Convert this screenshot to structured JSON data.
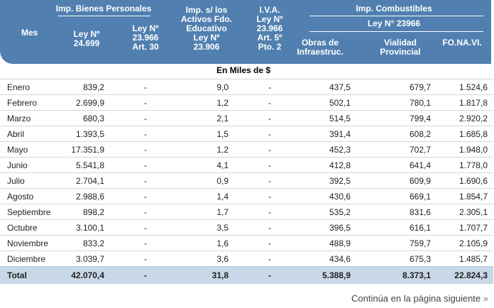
{
  "header": {
    "mes": "Mes",
    "bienes_group": "Imp. Bienes Personales",
    "bienes_ley1": [
      "Ley Nº",
      "24.699"
    ],
    "bienes_ley2": [
      "Ley Nº",
      "23.966",
      "Art. 30"
    ],
    "activos": [
      "Imp. s/ los",
      "Activos Fdo.",
      "Educativo",
      "Ley Nº",
      "23.906"
    ],
    "iva": [
      "I.V.A.",
      "Ley Nº",
      "23.966",
      "Art. 5º",
      "Pto. 2"
    ],
    "combustibles_group": "Imp. Combustibles",
    "combustibles_ley": "Ley N° 23966",
    "obras": [
      "Obras de",
      "Infraestruc."
    ],
    "vialidad": [
      "Vialidad",
      "Provincial"
    ],
    "fonavi": "FO.NA.VI."
  },
  "units": "En Miles de $",
  "rows": [
    [
      "Enero",
      "839,2",
      "-",
      "9,0",
      "-",
      "437,5",
      "679,7",
      "1.524,6"
    ],
    [
      "Febrero",
      "2.699,9",
      "-",
      "1,2",
      "-",
      "502,1",
      "780,1",
      "1.817,8"
    ],
    [
      "Marzo",
      "680,3",
      "-",
      "2,1",
      "-",
      "514,5",
      "799,4",
      "2.920,2"
    ],
    [
      "Abril",
      "1.393,5",
      "-",
      "1,5",
      "-",
      "391,4",
      "608,2",
      "1.685,8"
    ],
    [
      "Mayo",
      "17.351,9",
      "-",
      "1,2",
      "-",
      "452,3",
      "702,7",
      "1.948,0"
    ],
    [
      "Junio",
      "5.541,8",
      "-",
      "4,1",
      "-",
      "412,8",
      "641,4",
      "1.778,0"
    ],
    [
      "Julio",
      "2.704,1",
      "-",
      "0,9",
      "-",
      "392,5",
      "609,9",
      "1.690,6"
    ],
    [
      "Agosto",
      "2.988,6",
      "-",
      "1,4",
      "-",
      "430,6",
      "669,1",
      "1.854,7"
    ],
    [
      "Septiembre",
      "898,2",
      "-",
      "1,7",
      "-",
      "535,2",
      "831,6",
      "2.305,1"
    ],
    [
      "Octubre",
      "3.100,1",
      "-",
      "3,5",
      "-",
      "396,5",
      "616,1",
      "1.707,7"
    ],
    [
      "Noviembre",
      "833,2",
      "-",
      "1,6",
      "-",
      "488,9",
      "759,7",
      "2.105,9"
    ],
    [
      "Diciembre",
      "3.039,7",
      "-",
      "3,6",
      "-",
      "434,6",
      "675,3",
      "1.485,7"
    ]
  ],
  "total": [
    "Total",
    "42.070,4",
    "-",
    "31,8",
    "-",
    "5.388,9",
    "8.373,1",
    "22.824,3"
  ],
  "footer": "Continúa en la página siguiente",
  "footer_icon": "double-chevron-right-icon"
}
